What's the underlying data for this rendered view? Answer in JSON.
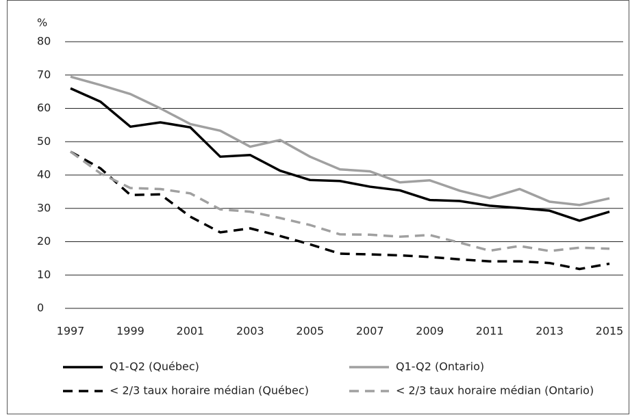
{
  "chart_data": {
    "type": "line",
    "y_unit_label": "%",
    "x": [
      1997,
      1998,
      1999,
      2000,
      2001,
      2002,
      2003,
      2004,
      2005,
      2006,
      2007,
      2008,
      2009,
      2010,
      2011,
      2012,
      2013,
      2014,
      2015
    ],
    "xlim": [
      1997,
      2015
    ],
    "xticks": [
      1997,
      1999,
      2001,
      2003,
      2005,
      2007,
      2009,
      2011,
      2013,
      2015
    ],
    "ylim": [
      0,
      80
    ],
    "yticks": [
      0,
      10,
      20,
      30,
      40,
      50,
      60,
      70,
      80
    ],
    "grid": true,
    "legend": "bottom",
    "series": [
      {
        "name": "Q1-Q2 (Québec)",
        "color": "#000000",
        "style": "solid",
        "values": [
          66,
          62,
          54.5,
          55.8,
          54.3,
          45.5,
          46,
          41.3,
          38.5,
          38.2,
          36.5,
          35.4,
          32.5,
          32.2,
          30.8,
          30.1,
          29.3,
          26.3,
          29
        ]
      },
      {
        "name": "Q1-Q2 (Ontario)",
        "color": "#a0a0a0",
        "style": "solid",
        "values": [
          69.5,
          67,
          64.3,
          60,
          55.3,
          53.3,
          48.5,
          50.5,
          45.5,
          41.7,
          41.1,
          37.8,
          38.4,
          35.3,
          33.1,
          35.8,
          32,
          31,
          33
        ]
      },
      {
        "name": "< 2/3 taux horaire médian (Québec)",
        "color": "#000000",
        "style": "dashed",
        "values": [
          47,
          42,
          34,
          34.2,
          27.5,
          22.8,
          24,
          21.7,
          19.2,
          16.4,
          16.2,
          15.9,
          15.4,
          14.7,
          14.1,
          14.1,
          13.6,
          11.8,
          13.4
        ]
      },
      {
        "name": "< 2/3 taux horaire médian (Ontario)",
        "color": "#a0a0a0",
        "style": "dashed",
        "values": [
          47,
          40.5,
          36.1,
          35.8,
          34.5,
          29.7,
          29,
          27.1,
          25,
          22.2,
          22.1,
          21.5,
          22,
          19.7,
          17.3,
          18.7,
          17.2,
          18.2,
          17.9
        ]
      }
    ]
  }
}
